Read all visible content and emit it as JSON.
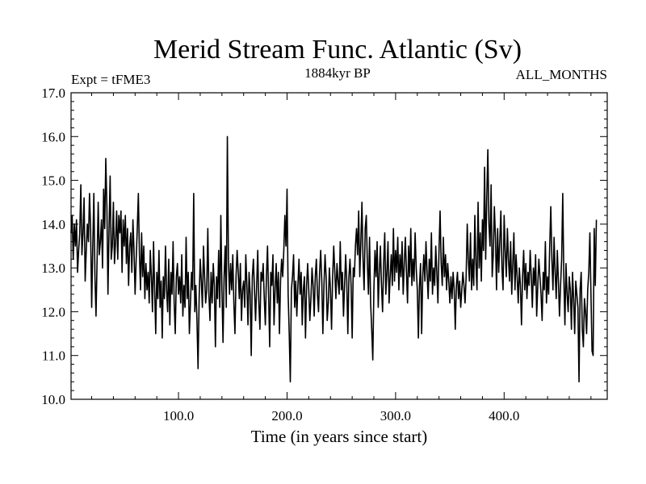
{
  "chart_data": {
    "type": "line",
    "title": "Merid Stream Func. Atlantic (Sv)",
    "subtitle_left": "Expt = tFME3",
    "subtitle_center": "1884kyr BP",
    "subtitle_right": "ALL_MONTHS",
    "xlabel": "Time (in years since start)",
    "ylabel": "",
    "xlim": [
      1,
      495
    ],
    "ylim": [
      10.0,
      17.0
    ],
    "x_ticks": [
      100,
      200,
      300,
      400
    ],
    "x_tick_labels": [
      "100.0",
      "200.0",
      "300.0",
      "400.0"
    ],
    "y_ticks": [
      10,
      11,
      12,
      13,
      14,
      15,
      16,
      17
    ],
    "y_tick_labels": [
      "10.0",
      "11.0",
      "12.0",
      "13.0",
      "14.0",
      "15.0",
      "16.0",
      "17.0"
    ],
    "grid": false,
    "line_color": "#000000",
    "series": [
      {
        "name": "Merid Stream Func. Atlantic",
        "x_start": 1,
        "x_step": 1,
        "values": [
          13.8,
          14.2,
          13.2,
          14.0,
          13.5,
          14.1,
          12.9,
          13.4,
          13.8,
          14.9,
          13.3,
          13.8,
          14.6,
          12.7,
          13.4,
          14.0,
          13.6,
          14.7,
          13.9,
          12.1,
          13.5,
          14.7,
          12.8,
          11.9,
          13.2,
          14.5,
          13.3,
          13.6,
          14.1,
          13.0,
          14.8,
          13.9,
          15.5,
          14.4,
          12.4,
          13.9,
          15.1,
          13.2,
          13.5,
          14.5,
          13.1,
          13.6,
          14.3,
          13.2,
          14.2,
          13.8,
          14.3,
          12.9,
          14.1,
          13.5,
          14.2,
          13.1,
          13.9,
          12.6,
          13.5,
          13.8,
          12.9,
          14.1,
          13.4,
          12.4,
          13.2,
          13.9,
          14.7,
          13.3,
          12.5,
          13.8,
          12.8,
          13.5,
          12.3,
          13.1,
          12.5,
          12.9,
          12.2,
          13.4,
          12.8,
          12.0,
          13.6,
          12.5,
          11.5,
          12.9,
          12.3,
          13.4,
          12.1,
          12.7,
          11.4,
          12.8,
          12.3,
          13.5,
          12.5,
          12.0,
          13.2,
          11.7,
          12.9,
          12.4,
          13.6,
          12.2,
          11.5,
          12.8,
          13.1,
          12.4,
          12.8,
          12.2,
          13.3,
          11.9,
          12.6,
          12.1,
          13.7,
          12.3,
          12.9,
          11.5,
          12.2,
          12.9,
          12.5,
          14.7,
          12.0,
          12.6,
          11.8,
          10.7,
          12.3,
          13.2,
          12.7,
          12.1,
          13.5,
          12.8,
          12.2,
          12.5,
          13.9,
          12.4,
          11.8,
          12.9,
          12.2,
          13.1,
          12.6,
          11.2,
          12.8,
          12.3,
          13.4,
          12.1,
          14.2,
          12.5,
          11.3,
          12.8,
          13.5,
          12.1,
          16.0,
          13.2,
          12.4,
          13.1,
          12.5,
          13.3,
          12.2,
          11.5,
          12.8,
          13.4,
          12.9,
          12.3,
          13.1,
          11.8,
          12.5,
          12.7,
          12.1,
          13.3,
          12.6,
          11.7,
          12.9,
          12.4,
          11.0,
          12.8,
          13.2,
          12.5,
          11.8,
          12.6,
          13.4,
          12.2,
          11.6,
          12.9,
          12.7,
          13.1,
          12.3,
          11.7,
          12.8,
          13.5,
          12.4,
          11.2,
          12.9,
          12.6,
          13.3,
          11.7,
          12.5,
          13.1,
          12.2,
          12.9,
          11.5,
          12.7,
          13.2,
          12.8,
          13.4,
          14.2,
          13.5,
          14.8,
          12.4,
          11.5,
          10.4,
          12.5,
          12.8,
          13.3,
          12.1,
          12.7,
          11.9,
          12.6,
          13.2,
          12.4,
          12.9,
          11.7,
          12.5,
          12.8,
          11.4,
          12.6,
          13.1,
          12.5,
          11.8,
          12.3,
          13.0,
          12.6,
          11.9,
          12.8,
          13.2,
          12.4,
          12.0,
          12.9,
          13.4,
          12.7,
          11.5,
          12.6,
          13.3,
          12.8,
          11.8,
          12.2,
          13.0,
          12.5,
          11.6,
          12.8,
          13.5,
          12.9,
          12.3,
          13.1,
          12.7,
          12.4,
          13.6,
          12.5,
          12.9,
          11.9,
          12.6,
          13.3,
          12.7,
          11.5,
          12.8,
          13.2,
          12.6,
          11.4,
          13.0,
          12.8,
          13.5,
          13.9,
          13.3,
          14.3,
          12.8,
          13.6,
          14.5,
          13.2,
          12.5,
          13.9,
          14.2,
          13.1,
          12.4,
          13.7,
          12.2,
          11.6,
          10.9,
          12.5,
          13.4,
          12.8,
          13.6,
          12.1,
          12.9,
          13.5,
          12.6,
          12.0,
          13.1,
          13.8,
          12.4,
          12.9,
          13.6,
          12.2,
          12.8,
          13.3,
          12.6,
          13.9,
          12.7,
          13.4,
          12.9,
          13.7,
          12.5,
          13.3,
          12.8,
          13.6,
          12.4,
          13.1,
          13.7,
          12.9,
          12.2,
          13.5,
          12.8,
          13.9,
          12.6,
          13.2,
          12.7,
          13.8,
          13.0,
          12.5,
          11.4,
          12.6,
          13.1,
          11.5,
          12.8,
          13.3,
          12.7,
          13.6,
          12.9,
          12.3,
          13.2,
          12.7,
          13.8,
          12.4,
          13.0,
          12.6,
          13.5,
          12.9,
          12.2,
          13.4,
          14.3,
          13.1,
          12.6,
          13.7,
          12.8,
          13.3,
          12.5,
          13.1,
          12.7,
          12.2,
          12.8,
          12.3,
          12.9,
          12.5,
          11.6,
          12.6,
          12.9,
          12.3,
          12.7,
          12.1,
          12.5,
          12.9,
          12.6,
          12.2,
          12.8,
          14.0,
          13.2,
          12.7,
          13.8,
          12.5,
          13.2,
          12.6,
          14.2,
          13.1,
          12.5,
          14.5,
          13.0,
          13.8,
          12.7,
          14.1,
          13.4,
          15.3,
          13.2,
          14.6,
          15.7,
          14.0,
          13.5,
          14.9,
          12.8,
          13.3,
          14.4,
          13.7,
          12.5,
          13.9,
          12.9,
          13.6,
          14.3,
          13.0,
          12.5,
          14.2,
          13.4,
          12.8,
          13.9,
          13.2,
          12.7,
          13.6,
          12.4,
          13.1,
          13.8,
          12.5,
          13.3,
          12.8,
          12.2,
          13.0,
          12.6,
          11.7,
          12.8,
          13.4,
          12.5,
          13.1,
          12.3,
          12.9,
          12.6,
          13.4,
          12.8,
          12.1,
          13.0,
          12.6,
          13.3,
          11.9,
          12.6,
          13.2,
          12.8,
          12.4,
          11.8,
          12.9,
          12.5,
          13.6,
          12.2,
          12.8,
          12.4,
          13.5,
          14.4,
          13.2,
          12.5,
          13.7,
          12.9,
          12.3,
          13.4,
          12.7,
          11.9,
          12.6,
          13.2,
          14.7,
          12.8,
          11.7,
          13.1,
          12.4,
          12.0,
          12.8,
          12.5,
          11.6,
          12.9,
          12.3,
          11.5,
          12.7,
          12.4,
          12.1,
          10.4,
          12.5,
          12.9,
          11.6,
          11.2,
          12.3,
          12.0,
          11.5,
          12.5,
          12.9,
          13.8,
          12.4,
          11.1,
          11.0,
          13.9,
          12.6,
          14.1
        ]
      }
    ]
  }
}
